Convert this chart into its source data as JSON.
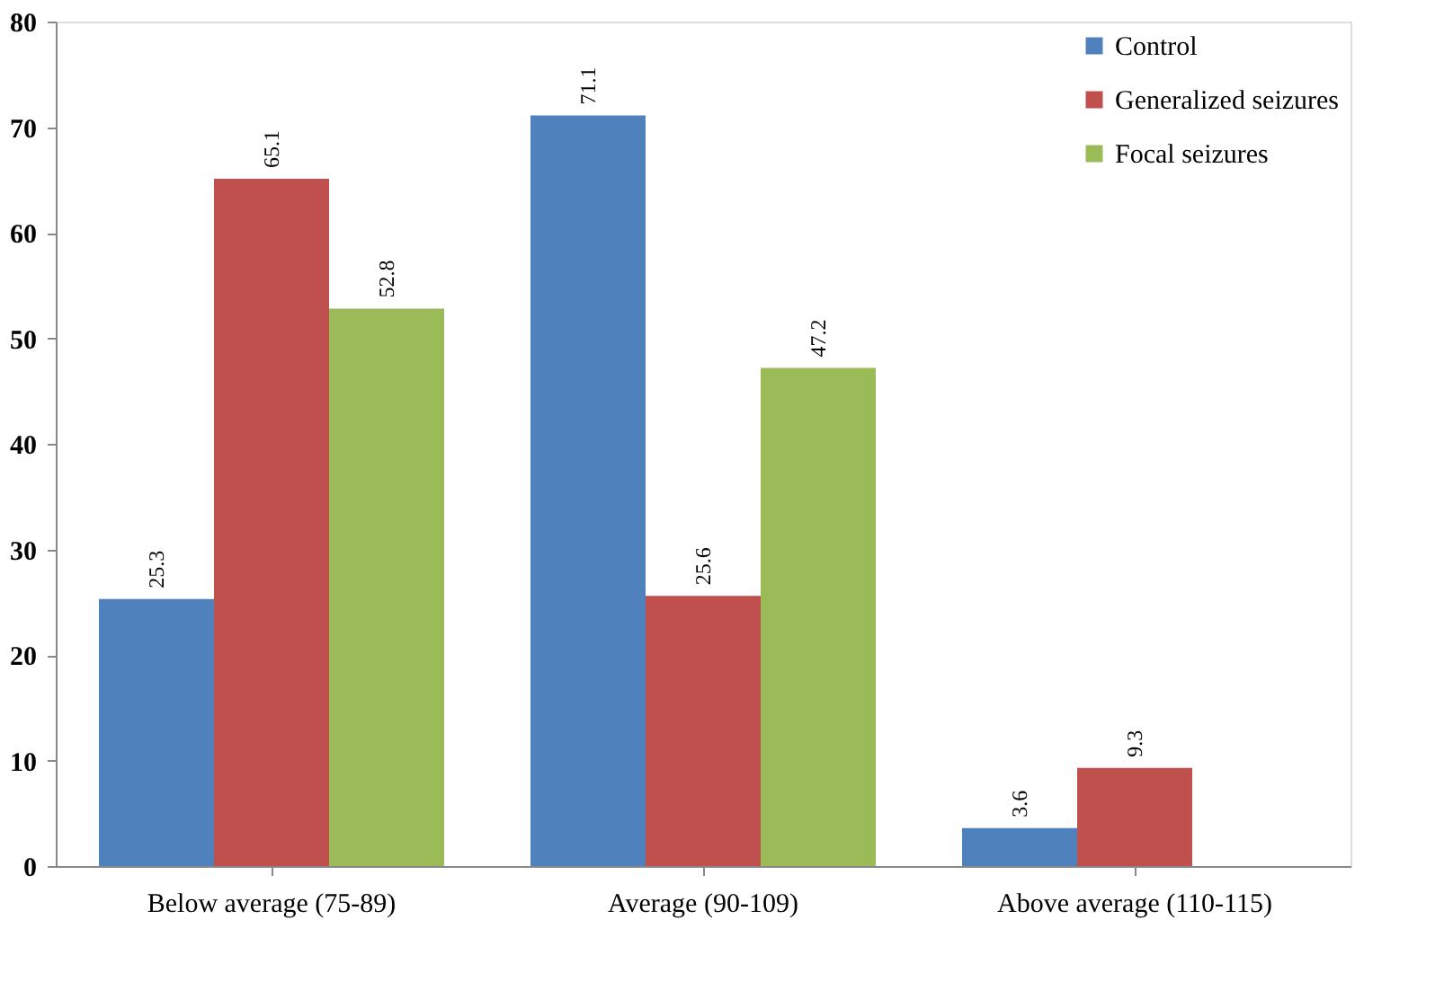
{
  "chart_data": {
    "type": "bar",
    "categories": [
      "Below average (75-89)",
      "Average (90-109)",
      "Above average (110-115)"
    ],
    "series": [
      {
        "name": "Control",
        "color": "#4f81bd",
        "values": [
          25.3,
          71.1,
          3.6
        ]
      },
      {
        "name": "Generalized seizures",
        "color": "#c0504d",
        "values": [
          65.1,
          25.6,
          9.3
        ]
      },
      {
        "name": "Focal seizures",
        "color": "#9bbb59",
        "values": [
          52.8,
          47.2,
          null
        ]
      }
    ],
    "ylim": [
      0,
      80
    ],
    "yticks": [
      0,
      10,
      20,
      30,
      40,
      50,
      60,
      70,
      80
    ],
    "data_labels": true,
    "grid": false,
    "legend": "top right"
  }
}
